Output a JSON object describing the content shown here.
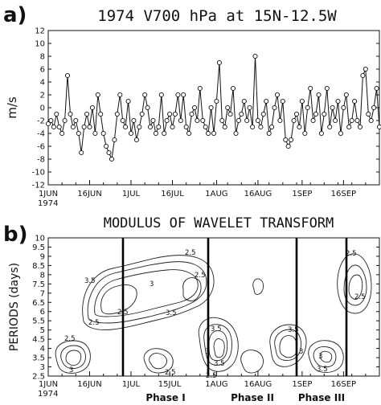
{
  "panel_a": {
    "letter": "a)",
    "title": "1974 V700 hPa at 15N-12.5W",
    "ylabel": "m/s",
    "yticks": [
      "12",
      "10",
      "8",
      "6",
      "4",
      "2",
      "0",
      "-2",
      "-4",
      "-6",
      "-8",
      "-10",
      "-12"
    ],
    "xticks": [
      "1JUN",
      "16JUN",
      "1JUL",
      "16JUL",
      "1AUG",
      "16AUG",
      "1SEP",
      "16SEP"
    ],
    "year": "1974"
  },
  "panel_b": {
    "letter": "b)",
    "title": "MODULUS OF WAVELET TRANSFORM",
    "ylabel": "PERIODS (days)",
    "yticks": [
      "10",
      "9.5",
      "9",
      "8.5",
      "8",
      "7.5",
      "7",
      "6.5",
      "6",
      "5.5",
      "5",
      "4.5",
      "4",
      "3.5",
      "3",
      "2.5"
    ],
    "xticks": [
      "1JUN",
      "16JUN",
      "1JUL",
      "15JUL",
      "1AUG",
      "16AUG",
      "1SEP",
      "16SEP"
    ],
    "year": "1974",
    "phases": [
      "Phase I",
      "Phase II",
      "Phase III"
    ],
    "contour_labels": [
      "2.5",
      "3",
      "3.5",
      "2.5",
      "2.5",
      "3",
      "3.5",
      "2.5",
      "2.5",
      "2.5",
      "3.5",
      "3",
      "3.5",
      "2.5",
      "3.5",
      "3",
      "3.5",
      "2.5",
      "2.5",
      "3"
    ]
  },
  "chart_data": [
    {
      "type": "line",
      "title": "1974 V700 hPa at 15N-12.5W",
      "ylabel": "m/s",
      "ylim": [
        -12,
        12
      ],
      "xlim_days": [
        0,
        120
      ],
      "x_start_label": "1JUN 1974",
      "series": [
        {
          "x": [
            0,
            1,
            2,
            3,
            4,
            5,
            6,
            7,
            8,
            9,
            10,
            11,
            12,
            13,
            14,
            15,
            16,
            17,
            18,
            19,
            20,
            21,
            22,
            23,
            24,
            25,
            26,
            27,
            28,
            29,
            30,
            31,
            32,
            33,
            34,
            35,
            36,
            37,
            38,
            39,
            40,
            41,
            42,
            43,
            44,
            45,
            46,
            47,
            48,
            49,
            50,
            51,
            52,
            53,
            54,
            55,
            56,
            57,
            58,
            59,
            60,
            61,
            62,
            63,
            64,
            65,
            66,
            67,
            68,
            69,
            70,
            71,
            72,
            73,
            74,
            75,
            76,
            77,
            78,
            79,
            80,
            81,
            82,
            83,
            84,
            85,
            86,
            87,
            88,
            89,
            90,
            91,
            92,
            93,
            94,
            95,
            96,
            97,
            98,
            99,
            100,
            101,
            102,
            103,
            104,
            105,
            106,
            107,
            108,
            109,
            110,
            111,
            112,
            113,
            114,
            115,
            116,
            117,
            118,
            119,
            120
          ],
          "values": [
            -2.5,
            -2,
            -3,
            -1,
            -3,
            -4,
            -2,
            5,
            -1,
            -3,
            -2,
            -4,
            -7,
            -3,
            -1,
            -3,
            0,
            -4,
            2,
            -1,
            -4,
            -6,
            -7,
            -8,
            -5,
            -1,
            2,
            -2,
            -3,
            1,
            -4,
            -2,
            -5,
            -3,
            -1,
            2,
            0,
            -3,
            -2,
            -4,
            -3,
            2,
            -4,
            -2,
            -1,
            -3,
            -1,
            2,
            -2,
            2,
            -3,
            -4,
            -1,
            0,
            -2,
            3,
            -2,
            -3,
            -4,
            0,
            -4,
            1,
            7,
            -2,
            -3,
            0,
            -1,
            3,
            -4,
            -2,
            -1,
            1,
            -2,
            0,
            -3,
            8,
            -2,
            -3,
            -1,
            1,
            -4,
            -3,
            0,
            2,
            -2,
            1,
            -5,
            -6,
            -5,
            -2,
            -1,
            -3,
            1,
            -4,
            0,
            3,
            -2,
            -1,
            2,
            -4,
            -1,
            3,
            -3,
            0,
            -2,
            1,
            -4,
            0,
            2,
            -3,
            -2,
            1,
            -2,
            -3,
            5,
            6,
            -1,
            -2,
            0,
            3,
            -3
          ]
        }
      ]
    },
    {
      "type": "contour",
      "title": "MODULUS OF WAVELET TRANSFORM",
      "ylabel": "PERIODS (days)",
      "ylim": [
        2.5,
        10
      ],
      "xlim_days": [
        0,
        120
      ],
      "contour_levels": [
        2.5,
        3,
        3.5
      ],
      "phases": [
        "Phase I",
        "Phase II",
        "Phase III"
      ]
    }
  ]
}
